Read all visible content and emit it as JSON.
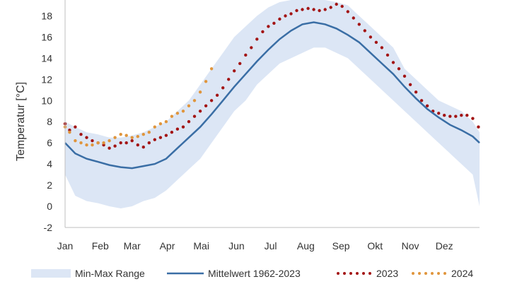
{
  "chart_data": {
    "type": "line",
    "title": "",
    "xlabel": "",
    "ylabel": "Temperatur [°C]",
    "ylim": [
      -2,
      19.5
    ],
    "yticks": [
      -2,
      0,
      2,
      4,
      6,
      8,
      10,
      12,
      14,
      16,
      18
    ],
    "xlim": [
      1,
      366
    ],
    "months": [
      {
        "label": "Jan",
        "day": 1
      },
      {
        "label": "Feb",
        "day": 32
      },
      {
        "label": "Mar",
        "day": 60
      },
      {
        "label": "Apr",
        "day": 91
      },
      {
        "label": "Mai",
        "day": 121
      },
      {
        "label": "Jun",
        "day": 152
      },
      {
        "label": "Jul",
        "day": 182
      },
      {
        "label": "Aug",
        "day": 213
      },
      {
        "label": "Sep",
        "day": 244
      },
      {
        "label": "Okt",
        "day": 274
      },
      {
        "label": "Nov",
        "day": 305
      },
      {
        "label": "Dez",
        "day": 335
      }
    ],
    "grid": false,
    "legend_position": "bottom",
    "range": {
      "name": "Min-Max Range",
      "color": "#dce6f5",
      "x": [
        1,
        10,
        20,
        30,
        40,
        50,
        60,
        70,
        80,
        90,
        100,
        110,
        120,
        130,
        140,
        150,
        160,
        170,
        180,
        190,
        200,
        210,
        220,
        230,
        240,
        250,
        260,
        270,
        280,
        290,
        300,
        310,
        320,
        330,
        340,
        350,
        360,
        366
      ],
      "min": [
        3.0,
        1.0,
        0.5,
        0.3,
        0.0,
        -0.2,
        0.0,
        0.5,
        0.8,
        1.5,
        2.5,
        3.5,
        4.5,
        6.0,
        7.5,
        9.0,
        10.0,
        11.5,
        12.5,
        13.5,
        14.0,
        14.5,
        15.0,
        15.0,
        14.5,
        14.0,
        13.0,
        12.0,
        11.0,
        10.0,
        9.0,
        8.0,
        7.0,
        6.0,
        5.0,
        4.0,
        3.0,
        0.0
      ],
      "max": [
        8.0,
        7.5,
        7.0,
        6.8,
        6.5,
        6.5,
        6.7,
        7.0,
        7.5,
        8.0,
        9.0,
        10.0,
        11.5,
        13.0,
        14.5,
        16.0,
        17.0,
        18.0,
        18.8,
        19.3,
        19.5,
        19.5,
        19.5,
        19.5,
        19.3,
        19.0,
        18.0,
        17.0,
        16.0,
        15.0,
        13.0,
        12.0,
        11.0,
        10.0,
        9.5,
        9.0,
        8.0,
        7.0
      ]
    },
    "series": [
      {
        "name": "Mittelwert 1962-2023",
        "style": "line",
        "color": "#3a6ea5",
        "x": [
          1,
          10,
          20,
          30,
          40,
          50,
          60,
          70,
          80,
          90,
          100,
          110,
          120,
          130,
          140,
          150,
          160,
          170,
          180,
          190,
          200,
          210,
          220,
          230,
          240,
          250,
          260,
          270,
          280,
          290,
          300,
          310,
          320,
          330,
          340,
          350,
          360,
          366
        ],
        "y": [
          6.0,
          5.0,
          4.5,
          4.2,
          3.9,
          3.7,
          3.6,
          3.8,
          4.0,
          4.5,
          5.5,
          6.5,
          7.5,
          8.7,
          10.0,
          11.3,
          12.5,
          13.7,
          14.8,
          15.8,
          16.6,
          17.2,
          17.4,
          17.2,
          16.8,
          16.2,
          15.5,
          14.5,
          13.5,
          12.5,
          11.3,
          10.2,
          9.2,
          8.4,
          7.7,
          7.2,
          6.6,
          6.0
        ]
      },
      {
        "name": "2023",
        "style": "dots",
        "color": "#a31515",
        "x": [
          1,
          5,
          10,
          15,
          20,
          25,
          30,
          35,
          40,
          45,
          50,
          55,
          60,
          65,
          70,
          75,
          80,
          85,
          90,
          95,
          100,
          105,
          110,
          115,
          120,
          125,
          130,
          135,
          140,
          145,
          150,
          155,
          160,
          165,
          170,
          175,
          180,
          185,
          190,
          195,
          200,
          205,
          210,
          215,
          220,
          225,
          230,
          235,
          240,
          245,
          250,
          255,
          260,
          265,
          270,
          275,
          280,
          285,
          290,
          295,
          300,
          305,
          310,
          315,
          320,
          325,
          330,
          335,
          340,
          345,
          350,
          355,
          360,
          365
        ],
        "y": [
          7.8,
          7.2,
          7.5,
          6.8,
          6.5,
          6.2,
          6.0,
          5.8,
          5.5,
          5.7,
          6.0,
          6.0,
          6.2,
          5.8,
          5.6,
          6.0,
          6.3,
          6.5,
          6.7,
          7.0,
          7.3,
          7.5,
          8.0,
          8.5,
          9.0,
          9.5,
          10.0,
          10.5,
          11.2,
          12.0,
          12.8,
          13.5,
          14.3,
          15.0,
          15.8,
          16.5,
          17.0,
          17.3,
          17.7,
          18.0,
          18.2,
          18.5,
          18.6,
          18.7,
          18.6,
          18.5,
          18.6,
          18.8,
          19.1,
          18.9,
          18.4,
          17.8,
          17.2,
          16.6,
          16.0,
          15.5,
          15.0,
          14.3,
          13.6,
          13.0,
          12.3,
          11.5,
          10.8,
          10.0,
          9.5,
          9.0,
          8.8,
          8.6,
          8.5,
          8.5,
          8.6,
          8.6,
          8.3,
          7.5
        ]
      },
      {
        "name": "2024",
        "style": "dots",
        "color": "#e0953c",
        "x": [
          1,
          5,
          10,
          15,
          20,
          25,
          30,
          35,
          40,
          45,
          50,
          55,
          60,
          65,
          70,
          75,
          80,
          85,
          90,
          95,
          100,
          105,
          110,
          115,
          120,
          125,
          130
        ],
        "y": [
          7.5,
          7.0,
          6.2,
          6.0,
          5.8,
          5.8,
          6.0,
          6.0,
          6.2,
          6.5,
          6.8,
          6.7,
          6.5,
          6.6,
          6.8,
          7.0,
          7.5,
          7.8,
          8.0,
          8.5,
          8.8,
          9.0,
          9.5,
          10.0,
          10.8,
          11.8,
          13.0
        ]
      }
    ]
  }
}
